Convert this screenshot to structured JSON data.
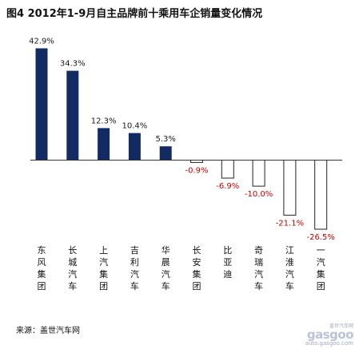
{
  "figure": {
    "title": "图4   2012年1-9月自主品牌前十乘用车企销量变化情况",
    "source": "来源：盖世汽车网"
  },
  "watermark": {
    "tagline": "盖世汽车网",
    "logo": "gasgoo",
    "url": "auto.gasgoo.com"
  },
  "colors": {
    "positive_fill": "#132b63",
    "negative_fill": "#ffffff",
    "negative_stroke": "#222222",
    "positive_label": "#1a1a1a",
    "negative_label": "#cc0000",
    "axis": "#333333"
  },
  "chart_data": {
    "type": "bar",
    "categories": [
      "东风集团",
      "长城汽车",
      "上汽集团",
      "吉利汽车",
      "华晨汽车",
      "长安集团",
      "比亚迪",
      "奇瑞汽车",
      "江淮汽车",
      "一汽集团"
    ],
    "values": [
      42.9,
      34.3,
      12.3,
      10.4,
      5.3,
      -0.9,
      -6.9,
      -10.0,
      -21.1,
      -26.5
    ],
    "value_labels": [
      "42.9%",
      "34.3%",
      "12.3%",
      "10.4%",
      "5.3%",
      "-0.9%",
      "-6.9%",
      "-10.0%",
      "-21.1%",
      "-26.5%"
    ],
    "title": "图4   2012年1-9月自主品牌前十乘用车企销量变化情况",
    "xlabel": "",
    "ylabel": "",
    "ylim": [
      -26.5,
      42.9
    ],
    "grid": false,
    "legend": "none"
  }
}
